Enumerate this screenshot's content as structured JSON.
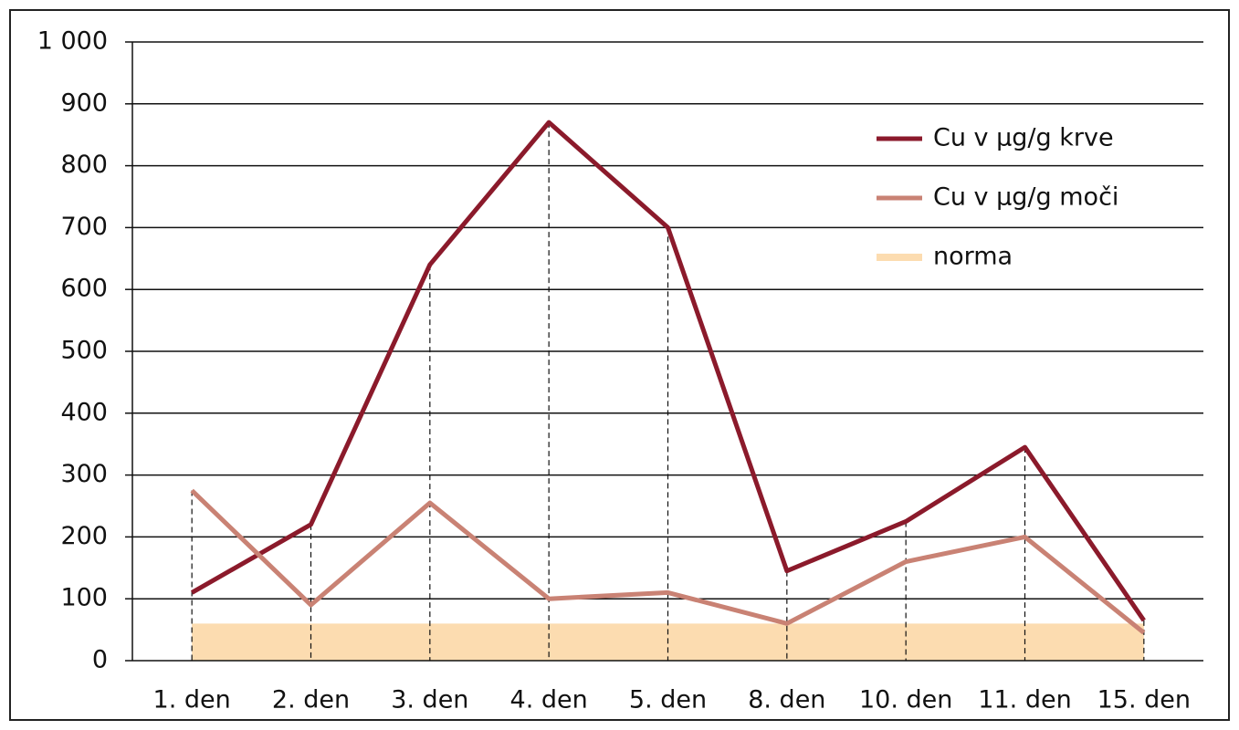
{
  "chart_data": {
    "type": "line",
    "categories": [
      "1. den",
      "2. den",
      "3. den",
      "4. den",
      "5. den",
      "8. den",
      "10. den",
      "11. den",
      "15. den"
    ],
    "series": [
      {
        "name": "Cu v µg/g krve",
        "color": "#8b1a2b",
        "values": [
          110,
          220,
          640,
          870,
          700,
          145,
          225,
          345,
          65
        ]
      },
      {
        "name": "Cu v µg/g moči",
        "color": "#c98274",
        "values": [
          275,
          90,
          255,
          100,
          110,
          60,
          160,
          200,
          45
        ]
      },
      {
        "name": "norma",
        "color": "#fcdcb0",
        "style": "area",
        "values": [
          60,
          60,
          60,
          60,
          60,
          60,
          60,
          60,
          60
        ]
      }
    ],
    "ylim": [
      0,
      1000
    ],
    "yticks": [
      0,
      100,
      200,
      300,
      400,
      500,
      600,
      700,
      800,
      900,
      {
        "value": 1000,
        "label": "1 000"
      }
    ],
    "grid": true,
    "drop_lines": true,
    "legend": "upper right"
  }
}
